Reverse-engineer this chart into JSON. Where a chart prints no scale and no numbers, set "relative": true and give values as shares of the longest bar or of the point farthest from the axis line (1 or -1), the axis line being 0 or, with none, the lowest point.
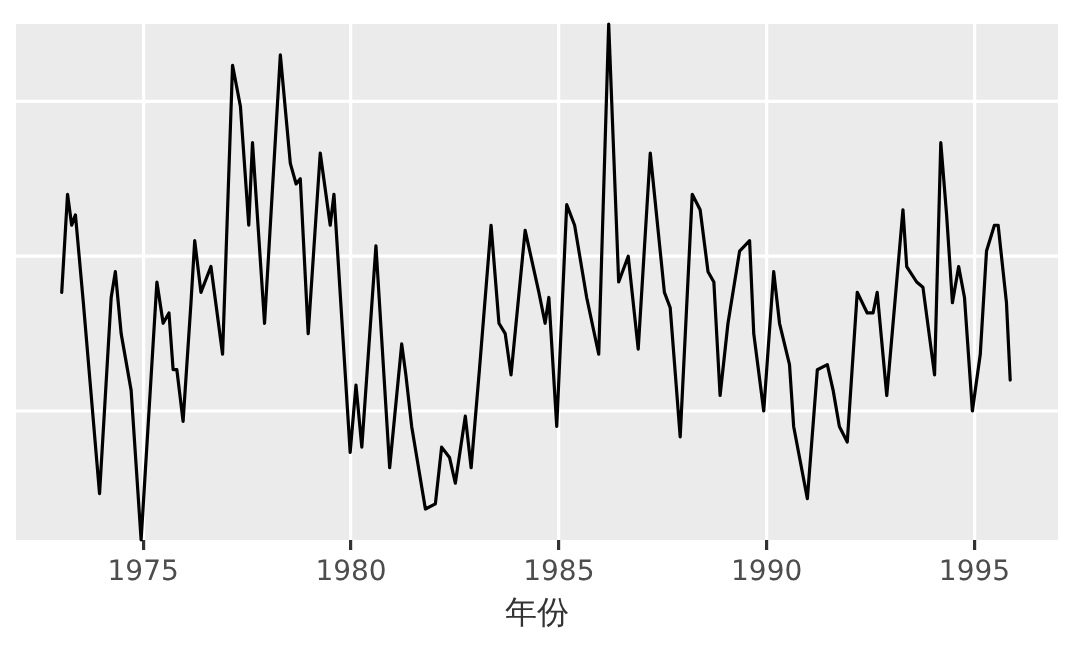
{
  "chart_data": {
    "type": "line",
    "xlabel": "年份",
    "relative": true,
    "tick_labels": "x",
    "grid": true,
    "legend": false,
    "marker": "none",
    "line_style": "solid",
    "xlim": [
      1971.94,
      1997.01
    ],
    "xticks": [
      1975,
      1980,
      1985,
      1990,
      1995
    ],
    "series": [
      {
        "color": "#000000",
        "x": [
          1973.04,
          1973.18,
          1973.28,
          1973.37,
          1973.56,
          1973.95,
          1974.23,
          1974.33,
          1974.47,
          1974.71,
          1974.95,
          1975.33,
          1975.48,
          1975.62,
          1975.72,
          1975.81,
          1975.96,
          1976.15,
          1976.24,
          1976.39,
          1976.63,
          1976.91,
          1977.15,
          1977.34,
          1977.54,
          1977.63,
          1977.92,
          1978.3,
          1978.54,
          1978.68,
          1978.78,
          1978.97,
          1979.26,
          1979.5,
          1979.59,
          1979.98,
          1980.12,
          1980.26,
          1980.6,
          1980.93,
          1981.22,
          1981.32,
          1981.46,
          1981.79,
          1982.03,
          1982.18,
          1982.37,
          1982.51,
          1982.75,
          1982.89,
          1983.09,
          1983.37,
          1983.56,
          1983.71,
          1983.85,
          1984.19,
          1984.52,
          1984.67,
          1984.76,
          1984.95,
          1985.19,
          1985.38,
          1985.67,
          1985.96,
          1986.2,
          1986.44,
          1986.67,
          1986.91,
          1987.2,
          1987.54,
          1987.68,
          1987.92,
          1988.21,
          1988.4,
          1988.59,
          1988.73,
          1988.88,
          1989.07,
          1989.35,
          1989.59,
          1989.69,
          1989.93,
          1990.17,
          1990.31,
          1990.55,
          1990.65,
          1990.98,
          1991.22,
          1991.46,
          1991.6,
          1991.75,
          1991.94,
          1992.18,
          1992.42,
          1992.56,
          1992.66,
          1992.89,
          1993.28,
          1993.37,
          1993.61,
          1993.76,
          1994.04,
          1994.19,
          1994.33,
          1994.47,
          1994.62,
          1994.76,
          1994.95,
          1995.14,
          1995.29,
          1995.48,
          1995.57,
          1995.77,
          1995.86
        ],
        "values": [
          0.48,
          0.67,
          0.61,
          0.63,
          0.46,
          0.09,
          0.47,
          0.52,
          0.4,
          0.29,
          0,
          0.5,
          0.42,
          0.44,
          0.33,
          0.33,
          0.23,
          0.46,
          0.58,
          0.48,
          0.53,
          0.36,
          0.92,
          0.84,
          0.61,
          0.77,
          0.42,
          0.94,
          0.73,
          0.69,
          0.7,
          0.4,
          0.75,
          0.61,
          0.67,
          0.17,
          0.3,
          0.18,
          0.57,
          0.14,
          0.38,
          0.32,
          0.22,
          0.06,
          0.07,
          0.18,
          0.16,
          0.11,
          0.24,
          0.14,
          0.33,
          0.61,
          0.42,
          0.4,
          0.32,
          0.6,
          0.48,
          0.42,
          0.47,
          0.22,
          0.65,
          0.61,
          0.47,
          0.36,
          1,
          0.5,
          0.55,
          0.37,
          0.75,
          0.48,
          0.45,
          0.2,
          0.67,
          0.64,
          0.52,
          0.5,
          0.28,
          0.42,
          0.56,
          0.58,
          0.4,
          0.25,
          0.52,
          0.42,
          0.34,
          0.22,
          0.08,
          0.33,
          0.34,
          0.29,
          0.22,
          0.19,
          0.48,
          0.44,
          0.44,
          0.48,
          0.28,
          0.64,
          0.53,
          0.5,
          0.49,
          0.32,
          0.77,
          0.63,
          0.46,
          0.53,
          0.47,
          0.25,
          0.36,
          0.56,
          0.61,
          0.61,
          0.46,
          0.31
        ]
      }
    ]
  }
}
